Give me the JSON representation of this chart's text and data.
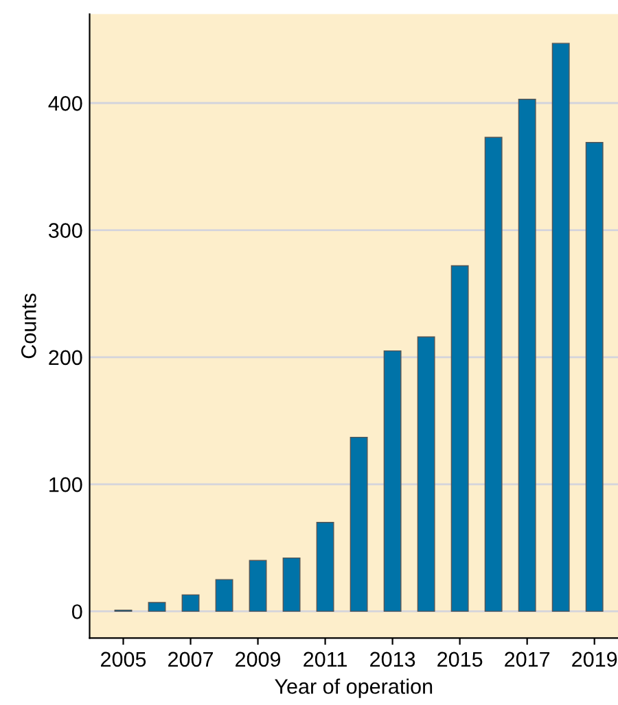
{
  "chart_data": {
    "type": "bar",
    "xlabel": "Year of operation",
    "ylabel": "Counts",
    "x": [
      2005,
      2006,
      2007,
      2008,
      2009,
      2010,
      2011,
      2012,
      2013,
      2014,
      2015,
      2016,
      2017,
      2018,
      2019
    ],
    "values": [
      1,
      7,
      13,
      25,
      40,
      42,
      70,
      137,
      205,
      216,
      272,
      373,
      403,
      447,
      369
    ],
    "color": "#0073a8",
    "xlim": [
      2004,
      2019.7
    ],
    "xticks": [
      2005,
      2007,
      2009,
      2011,
      2013,
      2015,
      2017,
      2019
    ],
    "ylim": [
      -21,
      470
    ],
    "yticks": [
      0,
      100,
      200,
      300,
      400
    ],
    "grid": "y"
  }
}
